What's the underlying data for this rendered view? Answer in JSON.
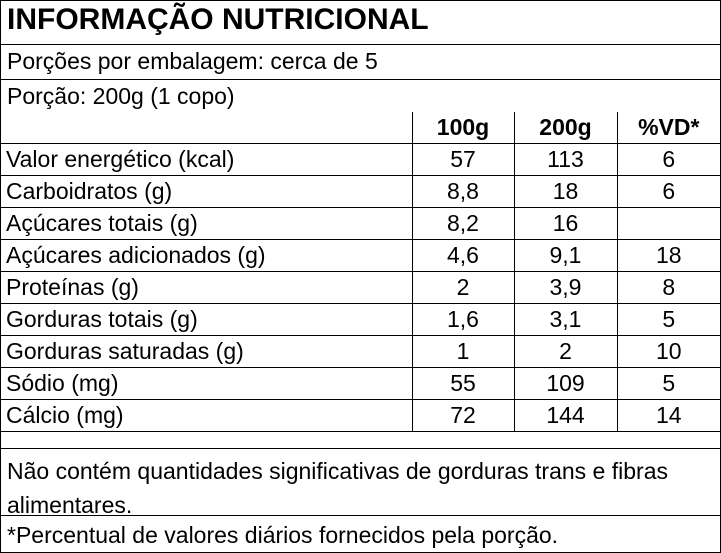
{
  "title": "INFORMAÇÃO NUTRICIONAL",
  "servings_per_package": "Porções por embalagem: cerca de 5",
  "serving_size": "Porção: 200g (1 copo)",
  "columns": [
    "",
    "100g",
    "200g",
    "%VD*"
  ],
  "rows": [
    {
      "name": "Valor energético (kcal)",
      "per100": "57",
      "per200": "113",
      "vd": "6"
    },
    {
      "name": "Carboidratos (g)",
      "per100": "8,8",
      "per200": "18",
      "vd": "6"
    },
    {
      "name": "Açúcares totais (g)",
      "per100": "8,2",
      "per200": "16",
      "vd": ""
    },
    {
      "name": "Açúcares  adicionados (g)",
      "per100": "4,6",
      "per200": "9,1",
      "vd": "18"
    },
    {
      "name": "Proteínas (g)",
      "per100": "2",
      "per200": "3,9",
      "vd": "8"
    },
    {
      "name": "Gorduras totais (g)",
      "per100": "1,6",
      "per200": "3,1",
      "vd": "5"
    },
    {
      "name": "Gorduras saturadas (g)",
      "per100": "1",
      "per200": "2",
      "vd": "10"
    },
    {
      "name": "Sódio (mg)",
      "per100": "55",
      "per200": "109",
      "vd": "5"
    },
    {
      "name": "Cálcio (mg)",
      "per100": "72",
      "per200": "144",
      "vd": "14"
    }
  ],
  "note_insignificant": "Não contém quantidades significativas de gorduras trans e fibras alimentares.",
  "note_vd": "*Percentual de valores diários fornecidos pela porção."
}
